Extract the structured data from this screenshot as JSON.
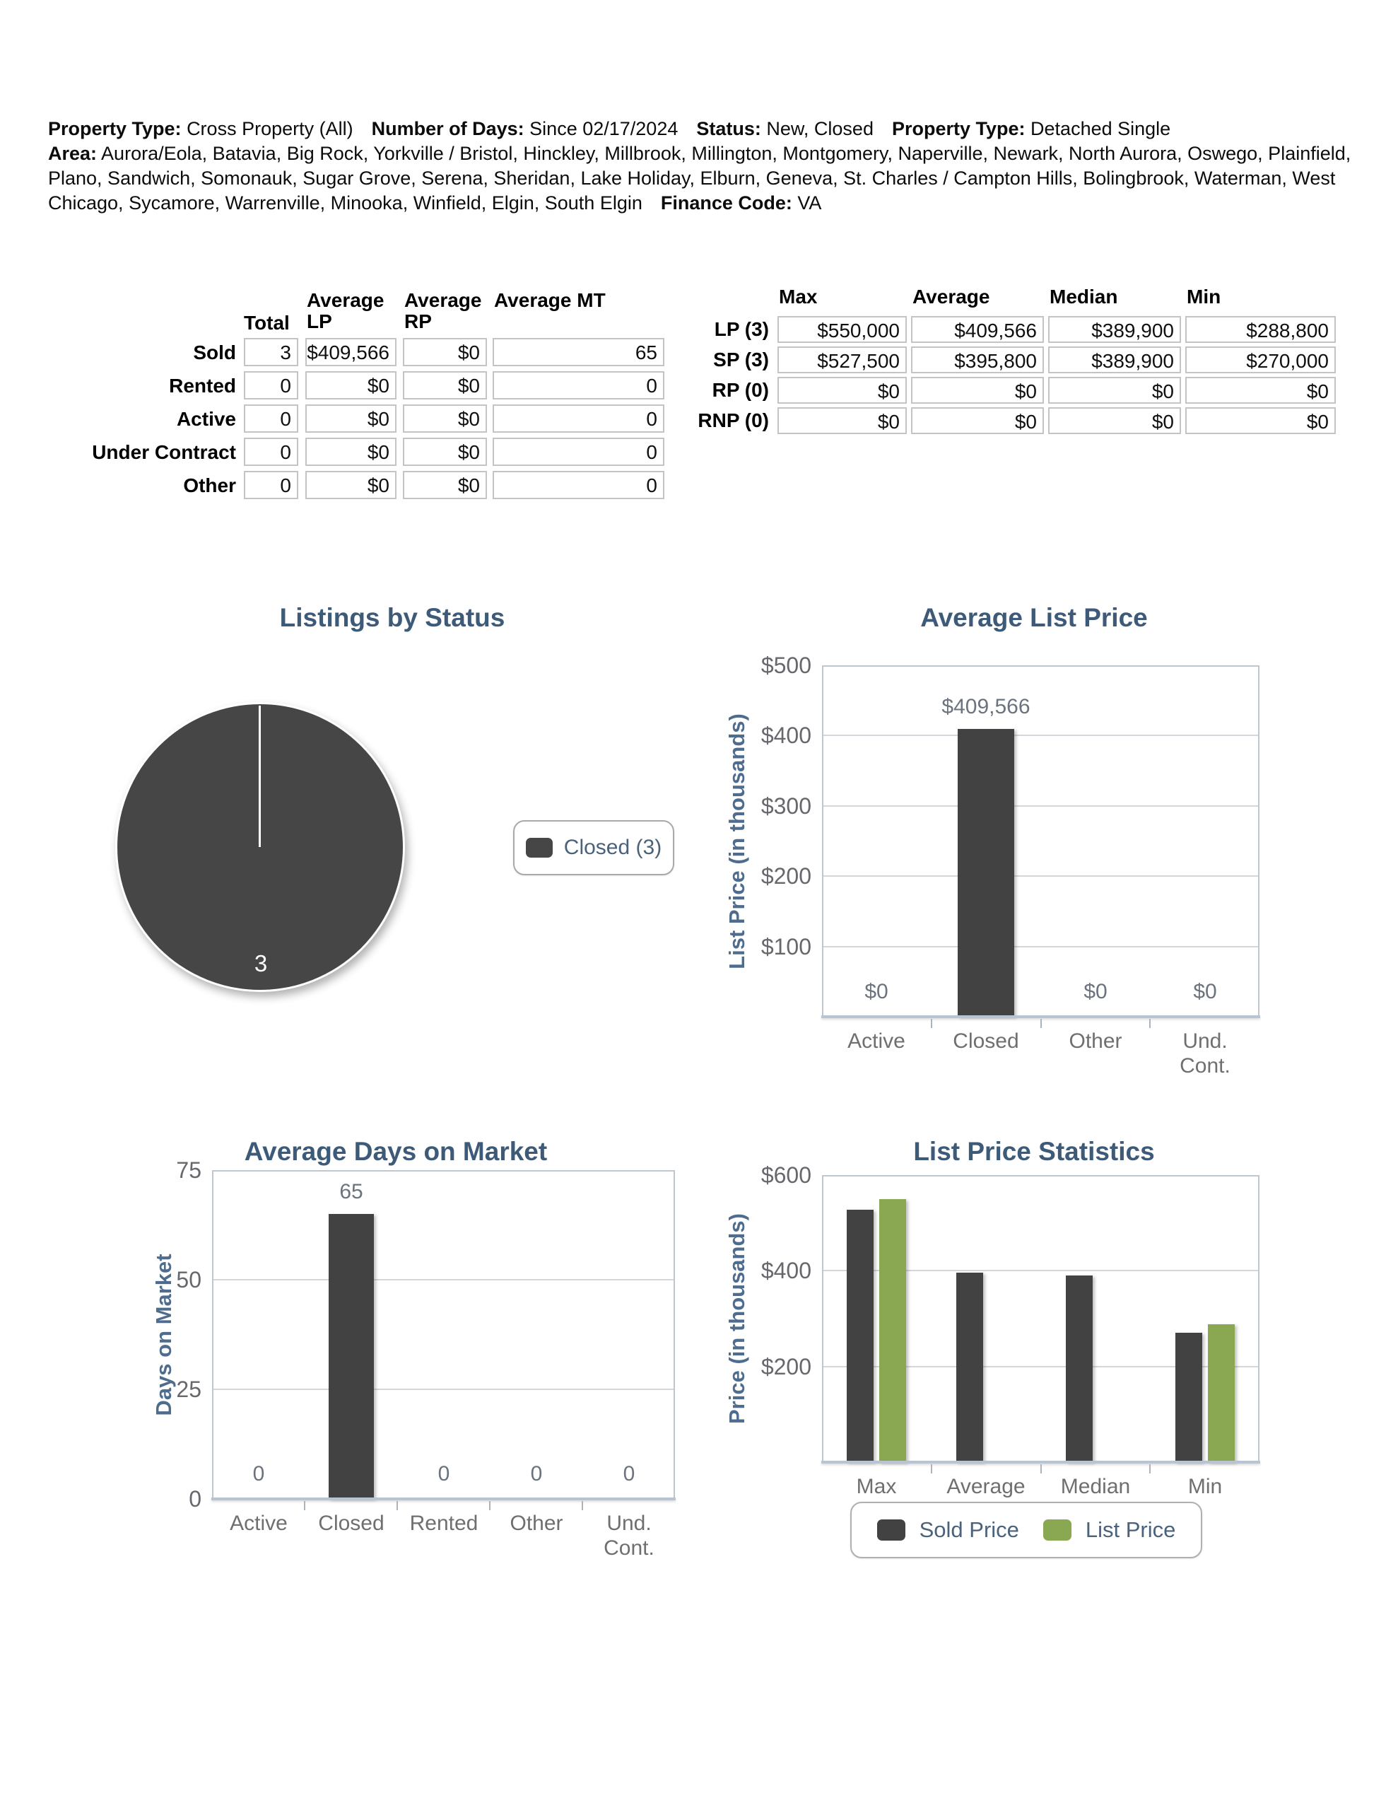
{
  "header": {
    "property_type_label": "Property Type:",
    "property_type_value": "Cross Property (All)",
    "num_days_label": "Number of Days:",
    "num_days_value": "Since 02/17/2024",
    "status_label": "Status:",
    "status_value": "New, Closed",
    "property_type2_label": "Property Type:",
    "property_type2_value": "Detached Single",
    "area_label": "Area:",
    "area_value": "Aurora/Eola, Batavia, Big Rock, Yorkville / Bristol, Hinckley, Millbrook, Millington, Montgomery, Naperville, Newark, North Aurora, Oswego, Plainfield, Plano, Sandwich, Somonauk, Sugar Grove, Serena, Sheridan, Lake Holiday, Elburn, Geneva, St. Charles / Campton Hills, Bolingbrook, Waterman, West Chicago, Sycamore, Warrenville, Minooka, Winfield, Elgin, South Elgin",
    "finance_label": "Finance Code:",
    "finance_value": "VA"
  },
  "status_table": {
    "headers": [
      "Total",
      "Average LP",
      "Average RP",
      "Average MT"
    ],
    "rows": [
      {
        "label": "Sold",
        "values": [
          "3",
          "$409,566",
          "$0",
          "65"
        ]
      },
      {
        "label": "Rented",
        "values": [
          "0",
          "$0",
          "$0",
          "0"
        ]
      },
      {
        "label": "Active",
        "values": [
          "0",
          "$0",
          "$0",
          "0"
        ]
      },
      {
        "label": "Under Contract",
        "values": [
          "0",
          "$0",
          "$0",
          "0"
        ]
      },
      {
        "label": "Other",
        "values": [
          "0",
          "$0",
          "$0",
          "0"
        ]
      }
    ]
  },
  "price_table": {
    "headers": [
      "Max",
      "Average",
      "Median",
      "Min"
    ],
    "rows": [
      {
        "label": "LP (3)",
        "values": [
          "$550,000",
          "$409,566",
          "$389,900",
          "$288,800"
        ]
      },
      {
        "label": "SP (3)",
        "values": [
          "$527,500",
          "$395,800",
          "$389,900",
          "$270,000"
        ]
      },
      {
        "label": "RP (0)",
        "values": [
          "$0",
          "$0",
          "$0",
          "$0"
        ]
      },
      {
        "label": "RNP (0)",
        "values": [
          "$0",
          "$0",
          "$0",
          "$0"
        ]
      }
    ]
  },
  "colors": {
    "charcoal": "#424242",
    "pie_fill": "#464646",
    "green": "#8aa751",
    "title_blue": "#3d5a78",
    "axis_label_blue": "#4e6d8e"
  },
  "chart_data": [
    {
      "type": "pie",
      "title": "Listings by Status",
      "slices": [
        {
          "label": "Closed",
          "value": 3,
          "color": "#464646"
        }
      ],
      "data_label": "3",
      "legend": [
        {
          "label": "Closed (3)",
          "color": "#464646"
        }
      ],
      "legend_position": "right"
    },
    {
      "type": "bar",
      "title": "Average List Price",
      "ylabel": "List Price (in thousands)",
      "ylim": [
        0,
        500
      ],
      "grid": true,
      "yticks": [
        {
          "v": 500,
          "label": "$500"
        },
        {
          "v": 400,
          "label": "$400"
        },
        {
          "v": 300,
          "label": "$300"
        },
        {
          "v": 200,
          "label": "$200"
        },
        {
          "v": 100,
          "label": "$100"
        }
      ],
      "bar_color": "#424242",
      "categories": [
        {
          "label": [
            "Active"
          ],
          "value": 0,
          "value_label": "$0"
        },
        {
          "label": [
            "Closed"
          ],
          "value": 409.566,
          "value_label": "$409,566"
        },
        {
          "label": [
            "Other"
          ],
          "value": 0,
          "value_label": "$0"
        },
        {
          "label": [
            "Und.",
            "Cont."
          ],
          "value": 0,
          "value_label": "$0"
        }
      ]
    },
    {
      "type": "bar",
      "title": "Average Days on Market",
      "ylabel": "Days on Market",
      "ylim": [
        0,
        75
      ],
      "grid": true,
      "yticks": [
        {
          "v": 75,
          "label": "75"
        },
        {
          "v": 50,
          "label": "50"
        },
        {
          "v": 25,
          "label": "25"
        },
        {
          "v": 0,
          "label": "0"
        }
      ],
      "bar_color": "#424242",
      "categories": [
        {
          "label": [
            "Active"
          ],
          "value": 0,
          "value_label": "0"
        },
        {
          "label": [
            "Closed"
          ],
          "value": 65,
          "value_label": "65"
        },
        {
          "label": [
            "Rented"
          ],
          "value": 0,
          "value_label": "0"
        },
        {
          "label": [
            "Other"
          ],
          "value": 0,
          "value_label": "0"
        },
        {
          "label": [
            "Und.",
            "Cont."
          ],
          "value": 0,
          "value_label": "0"
        }
      ]
    },
    {
      "type": "grouped_bar",
      "title": "List Price Statistics",
      "ylabel": "Price (in thousands)",
      "ylim": [
        0,
        600
      ],
      "grid": true,
      "yticks": [
        {
          "v": 600,
          "label": "$600"
        },
        {
          "v": 400,
          "label": "$400"
        },
        {
          "v": 200,
          "label": "$200"
        }
      ],
      "categories": [
        "Max",
        "Average",
        "Median",
        "Min"
      ],
      "series": [
        {
          "name": "Sold Price",
          "color": "#424242",
          "values": [
            527.5,
            395.8,
            389.9,
            270
          ]
        },
        {
          "name": "List Price",
          "color": "#8aa751",
          "values": [
            550,
            null,
            null,
            288.8
          ]
        }
      ],
      "legend_position": "bottom"
    }
  ]
}
